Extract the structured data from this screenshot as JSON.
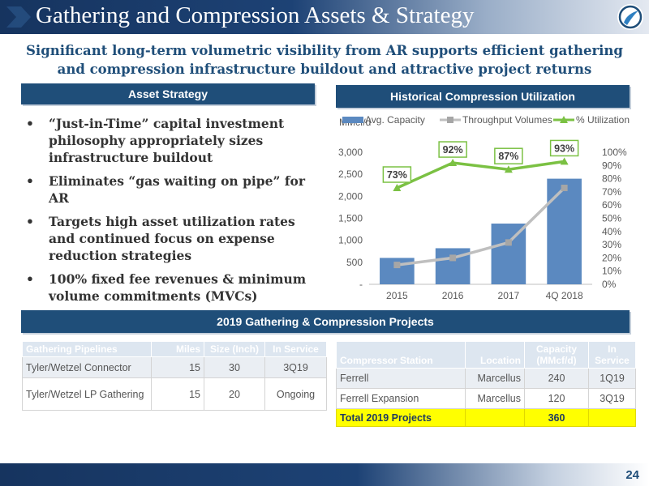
{
  "title": "Gathering and Compression Assets & Strategy",
  "subtitle_line1": "Significant long-term volumetric visibility from AR supports efficient gathering",
  "subtitle_line2": "and compression infrastructure buildout and attractive project returns",
  "asset_strategy": {
    "header": "Asset Strategy",
    "bullets": [
      "“Just-in-Time” capital investment philosophy appropriately sizes infrastructure buildout",
      "Eliminates “gas waiting on pipe” for AR",
      "Targets high asset utilization rates and continued focus on expense reduction strategies",
      "100% fixed fee revenues & minimum volume commitments (MVCs)"
    ]
  },
  "chart_header": "Historical Compression Utilization",
  "chart_data": {
    "type": "bar",
    "categories": [
      "2015",
      "2016",
      "2017",
      "4Q 2018"
    ],
    "series": [
      {
        "name": "Avg. Capacity",
        "type": "bar",
        "axis": "left",
        "values": [
          600,
          820,
          1380,
          2400
        ],
        "color": "#5b89c0"
      },
      {
        "name": "Throughput Volumes",
        "type": "line",
        "axis": "left",
        "values": [
          440,
          600,
          950,
          2190
        ],
        "color": "#bfbfbf"
      },
      {
        "name": "% Utilization",
        "type": "line",
        "axis": "right",
        "values": [
          73,
          92,
          87,
          93
        ],
        "labels": [
          "73%",
          "92%",
          "87%",
          "93%"
        ],
        "color": "#7bc143"
      }
    ],
    "ylabel": "MMcf/d",
    "ylim": [
      0,
      3000
    ],
    "y2lim": [
      0,
      100
    ],
    "yticks": [
      "-",
      "500",
      "1,000",
      "1,500",
      "2,000",
      "2,500",
      "3,000"
    ],
    "y2ticks": [
      "0%",
      "10%",
      "20%",
      "30%",
      "40%",
      "50%",
      "60%",
      "70%",
      "80%",
      "90%",
      "100%"
    ],
    "legend": "top"
  },
  "projects_header": "2019 Gathering & Compression Projects",
  "pipelines": {
    "headers": [
      "Gathering Pipelines",
      "Miles",
      "Size (Inch)",
      "In Service"
    ],
    "rows": [
      [
        "Tyler/Wetzel Connector",
        "15",
        "30",
        "3Q19"
      ],
      [
        "Tyler/Wetzel LP Gathering",
        "15",
        "20",
        "Ongoing"
      ]
    ]
  },
  "compressors": {
    "headers": [
      "Compressor Station",
      "Location",
      "Capacity (MMcf/d)",
      "In Service"
    ],
    "rows": [
      [
        "Ferrell",
        "Marcellus",
        "240",
        "1Q19"
      ],
      [
        "Ferrell Expansion",
        "Marcellus",
        "120",
        "3Q19"
      ]
    ],
    "total": [
      "Total 2019 Projects",
      "",
      "360",
      ""
    ]
  },
  "page_number": "24",
  "colors": {
    "navy": "#1f4e79",
    "accent_green": "#7bc143",
    "bar_blue": "#5b89c0",
    "highlight": "#ffff00"
  }
}
